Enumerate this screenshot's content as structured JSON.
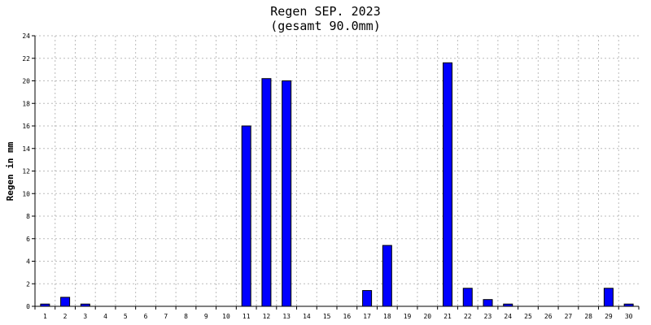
{
  "chart_data": {
    "type": "bar",
    "title": "Regen SEP. 2023",
    "subtitle": "(gesamt 90.0mm)",
    "xlabel": "",
    "ylabel": "Regen in mm",
    "ylim": [
      0,
      24
    ],
    "yticks": [
      "0",
      "2",
      "4",
      "6",
      "8",
      "10",
      "12",
      "14",
      "16",
      "18",
      "20",
      "22",
      "24"
    ],
    "grid": true,
    "categories": [
      "1",
      "2",
      "3",
      "4",
      "5",
      "6",
      "7",
      "8",
      "9",
      "10",
      "11",
      "12",
      "13",
      "14",
      "15",
      "16",
      "17",
      "18",
      "19",
      "20",
      "21",
      "22",
      "23",
      "24",
      "25",
      "26",
      "27",
      "28",
      "29",
      "30"
    ],
    "values": [
      0.2,
      0.8,
      0.2,
      0,
      0,
      0,
      0,
      0,
      0,
      0,
      16.0,
      20.2,
      20.0,
      0,
      0,
      0,
      1.4,
      5.4,
      0,
      0,
      21.6,
      1.6,
      0.6,
      0.2,
      0,
      0,
      0,
      0,
      1.6,
      0.2
    ],
    "colors": {
      "bar": "#0000ff",
      "bar_edge": "#000000",
      "grid": "#bbbbbb",
      "axis": "#000000"
    }
  }
}
